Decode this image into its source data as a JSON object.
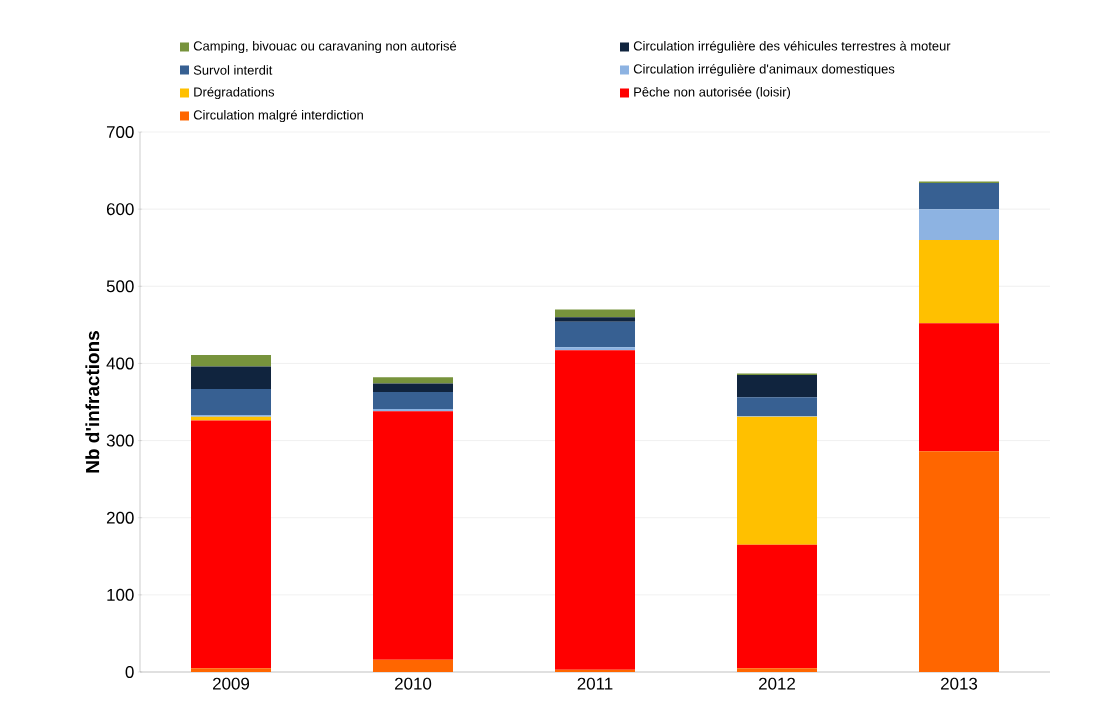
{
  "chart_data": {
    "type": "bar",
    "stacked": true,
    "ylabel": "Nb d'infractions",
    "categories": [
      "2009",
      "2010",
      "2011",
      "2012",
      "2013"
    ],
    "series": [
      {
        "name": "Circulation malgré interdiction",
        "color": "#ff6600",
        "values": [
          5,
          16,
          3,
          5,
          286
        ]
      },
      {
        "name": "Pêche non autorisée (loisir)",
        "color": "#ff0000",
        "values": [
          321,
          322,
          414,
          160,
          166
        ]
      },
      {
        "name": "Drégradations",
        "color": "#ffc000",
        "values": [
          5,
          0,
          0,
          166,
          108
        ]
      },
      {
        "name": "Circulation irrégulière d'animaux domestiques",
        "color": "#8db3e2",
        "values": [
          2,
          3,
          4,
          1,
          40
        ]
      },
      {
        "name": "Survol interdit",
        "color": "#376092",
        "values": [
          34,
          22,
          33,
          24,
          34
        ]
      },
      {
        "name": "Circulation irrégulière des véhicules terrestres à moteur",
        "color": "#10243e",
        "values": [
          29,
          11,
          6,
          29,
          0
        ]
      },
      {
        "name": "Camping, bivouac ou caravaning non autorisé",
        "color": "#77933c",
        "values": [
          15,
          8,
          10,
          2,
          2
        ]
      }
    ],
    "ylim": [
      0,
      700
    ],
    "yticks": [
      0,
      100,
      200,
      300,
      400,
      500,
      600,
      700
    ],
    "grid": "y",
    "legend": "top"
  }
}
